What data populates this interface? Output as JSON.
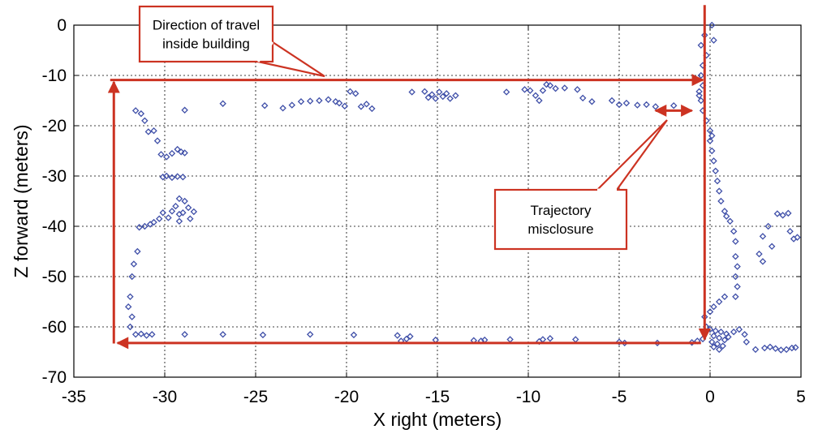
{
  "chart_data": {
    "type": "scatter",
    "title": "",
    "xlabel": "X right (meters)",
    "ylabel": "Z forward (meters)",
    "xlim": [
      -35,
      5
    ],
    "ylim": [
      -70,
      0
    ],
    "xticks": [
      -35,
      -30,
      -25,
      -20,
      -15,
      -10,
      -5,
      0,
      5
    ],
    "yticks": [
      0,
      -10,
      -20,
      -30,
      -40,
      -50,
      -60,
      -70
    ],
    "xtick_labels": [
      "-35",
      "-30",
      "-25",
      "-20",
      "-15",
      "-10",
      "-5",
      "0",
      "5"
    ],
    "ytick_labels": [
      "0",
      "-10",
      "-20",
      "-30",
      "-40",
      "-50",
      "-60",
      "-70"
    ],
    "grid": true,
    "marker": "diamond",
    "marker_color": "#3f4fa8",
    "points": [
      [
        0.1,
        0
      ],
      [
        -0.3,
        -2
      ],
      [
        0.2,
        -3
      ],
      [
        -0.5,
        -4
      ],
      [
        -0.2,
        -6
      ],
      [
        -0.4,
        -8
      ],
      [
        -0.5,
        -10
      ],
      [
        -0.4,
        -12
      ],
      [
        -0.6,
        -13.2
      ],
      [
        -0.6,
        -14
      ],
      [
        -0.5,
        -15
      ],
      [
        -0.4,
        -17
      ],
      [
        -0.2,
        -19
      ],
      [
        0,
        -21
      ],
      [
        0.1,
        -22
      ],
      [
        0,
        -23
      ],
      [
        0.1,
        -25
      ],
      [
        0.2,
        -27
      ],
      [
        0.3,
        -29
      ],
      [
        0.4,
        -31
      ],
      [
        0.5,
        -33
      ],
      [
        0.6,
        -35
      ],
      [
        0.8,
        -37
      ],
      [
        0.9,
        -38
      ],
      [
        1.1,
        -39
      ],
      [
        1.3,
        -41
      ],
      [
        1.4,
        -43
      ],
      [
        1.4,
        -46
      ],
      [
        1.5,
        -48
      ],
      [
        1.4,
        -50
      ],
      [
        1.5,
        -52
      ],
      [
        1.4,
        -54
      ],
      [
        0.8,
        -54
      ],
      [
        0.5,
        -55
      ],
      [
        0.2,
        -56
      ],
      [
        0,
        -57
      ],
      [
        -0.3,
        -58
      ],
      [
        -0.2,
        -60
      ],
      [
        0,
        -60.5
      ],
      [
        0.3,
        -60.8
      ],
      [
        0.6,
        -61
      ],
      [
        0.9,
        -61.4
      ],
      [
        0.2,
        -61.8
      ],
      [
        0.5,
        -62.2
      ],
      [
        0.8,
        -62.6
      ],
      [
        0.1,
        -63
      ],
      [
        0.4,
        -63.4
      ],
      [
        0.7,
        -63.8
      ],
      [
        1,
        -62
      ],
      [
        1.3,
        -61
      ],
      [
        1.6,
        -60.5
      ],
      [
        1.9,
        -61.5
      ],
      [
        -0.4,
        -62.4
      ],
      [
        -0.7,
        -62.8
      ],
      [
        -1,
        -63.1
      ],
      [
        0.2,
        -64
      ],
      [
        0.5,
        -64.5
      ],
      [
        2,
        -63
      ],
      [
        2.5,
        -64.5
      ],
      [
        3,
        -64.2
      ],
      [
        3.3,
        -64
      ],
      [
        3.6,
        -64.3
      ],
      [
        3.9,
        -64.6
      ],
      [
        4.2,
        -64.5
      ],
      [
        4.5,
        -64.2
      ],
      [
        4.7,
        -64.1
      ],
      [
        2.9,
        -42
      ],
      [
        3.2,
        -40
      ],
      [
        3.4,
        -44
      ],
      [
        3.7,
        -37.5
      ],
      [
        4,
        -37.8
      ],
      [
        4.3,
        -37.4
      ],
      [
        4.4,
        -41
      ],
      [
        4.6,
        -42.5
      ],
      [
        4.8,
        -42.2
      ],
      [
        2.7,
        -45.5
      ],
      [
        2.9,
        -47
      ],
      [
        -2,
        -16
      ],
      [
        -3,
        -16.2
      ],
      [
        -3.5,
        -15.8
      ],
      [
        -4,
        -15.9
      ],
      [
        -4.6,
        -15.5
      ],
      [
        -5,
        -15.8
      ],
      [
        -5.4,
        -15
      ],
      [
        -6.5,
        -15.2
      ],
      [
        -7,
        -14.5
      ],
      [
        -7.3,
        -12.8
      ],
      [
        -8,
        -12.5
      ],
      [
        -8.5,
        -12.6
      ],
      [
        -8.8,
        -12
      ],
      [
        -9,
        -11.8
      ],
      [
        -9.2,
        -13
      ],
      [
        -9.4,
        -15
      ],
      [
        -9.6,
        -14
      ],
      [
        -9.9,
        -13
      ],
      [
        -10.2,
        -12.8
      ],
      [
        -11.2,
        -13.3
      ],
      [
        -14,
        -14
      ],
      [
        -14.3,
        -14.6
      ],
      [
        -14.5,
        -13.6
      ],
      [
        -14.7,
        -14.2
      ],
      [
        -14.9,
        -13.3
      ],
      [
        -15.1,
        -14.6
      ],
      [
        -15.3,
        -13.8
      ],
      [
        -15.5,
        -14.4
      ],
      [
        -15.7,
        -13.2
      ],
      [
        -16.4,
        -13.3
      ],
      [
        -18.6,
        -16.6
      ],
      [
        -18.9,
        -15.7
      ],
      [
        -19.2,
        -16.2
      ],
      [
        -19.5,
        -13.6
      ],
      [
        -19.8,
        -13.2
      ],
      [
        -20.1,
        -16.1
      ],
      [
        -20.4,
        -15.5
      ],
      [
        -20.6,
        -15.2
      ],
      [
        -21,
        -14.8
      ],
      [
        -21.5,
        -15
      ],
      [
        -22,
        -15.1
      ],
      [
        -22.5,
        -15.2
      ],
      [
        -23,
        -15.9
      ],
      [
        -23.5,
        -16.5
      ],
      [
        -24.5,
        -16
      ],
      [
        -26.8,
        -15.6
      ],
      [
        -28.9,
        -16.9
      ],
      [
        -31.6,
        -17
      ],
      [
        -31.3,
        -17.6
      ],
      [
        -31.1,
        -19
      ],
      [
        -30.9,
        -21.2
      ],
      [
        -30.6,
        -21
      ],
      [
        -30.4,
        -23
      ],
      [
        -30.2,
        -25.7
      ],
      [
        -29.9,
        -26.2
      ],
      [
        -29.6,
        -25.5
      ],
      [
        -29.3,
        -24.7
      ],
      [
        -29.1,
        -25.2
      ],
      [
        -28.9,
        -25.4
      ],
      [
        -30.1,
        -30.2
      ],
      [
        -29.9,
        -30
      ],
      [
        -29.6,
        -30.3
      ],
      [
        -29.3,
        -30.1
      ],
      [
        -29,
        -30.2
      ],
      [
        -29.4,
        -36
      ],
      [
        -29.6,
        -37
      ],
      [
        -29.2,
        -37.6
      ],
      [
        -29,
        -37.3
      ],
      [
        -28.7,
        -36.3
      ],
      [
        -28.4,
        -37.1
      ],
      [
        -28.6,
        -38.5
      ],
      [
        -29.2,
        -39
      ],
      [
        -29.8,
        -38.3
      ],
      [
        -30.1,
        -37.3
      ],
      [
        -30.3,
        -38.5
      ],
      [
        -30.6,
        -39.2
      ],
      [
        -30.8,
        -39.6
      ],
      [
        -31.1,
        -40
      ],
      [
        -31.4,
        -40.2
      ],
      [
        -28.9,
        -35
      ],
      [
        -29.2,
        -34.5
      ],
      [
        -31.5,
        -45
      ],
      [
        -31.7,
        -47.5
      ],
      [
        -31.8,
        -50
      ],
      [
        -31.9,
        -54
      ],
      [
        -32,
        -56
      ],
      [
        -31.8,
        -58
      ],
      [
        -31.9,
        -60
      ],
      [
        -31.6,
        -61.5
      ],
      [
        -31.3,
        -61.4
      ],
      [
        -31,
        -61.7
      ],
      [
        -30.7,
        -61.5
      ],
      [
        -28.9,
        -61.5
      ],
      [
        -26.8,
        -61.5
      ],
      [
        -24.6,
        -61.6
      ],
      [
        -22,
        -61.5
      ],
      [
        -19.6,
        -61.6
      ],
      [
        -17.2,
        -61.7
      ],
      [
        -17,
        -62.8
      ],
      [
        -16.7,
        -62.4
      ],
      [
        -16.5,
        -61.9
      ],
      [
        -15.1,
        -62.6
      ],
      [
        -13,
        -62.7
      ],
      [
        -12.6,
        -62.8
      ],
      [
        -12.4,
        -62.6
      ],
      [
        -11,
        -62.5
      ],
      [
        -9.4,
        -62.9
      ],
      [
        -9.2,
        -62.5
      ],
      [
        -8.8,
        -62.3
      ],
      [
        -7.4,
        -62.5
      ],
      [
        -5,
        -63
      ],
      [
        -4.7,
        -63.2
      ],
      [
        -2.9,
        -63.2
      ]
    ],
    "annotations": [
      {
        "id": "direction",
        "lines": [
          "Direction of travel",
          "inside building"
        ]
      },
      {
        "id": "misclosure",
        "lines": [
          "Trajectory",
          "misclosure"
        ]
      }
    ],
    "arrow_color": "#cc3322"
  }
}
